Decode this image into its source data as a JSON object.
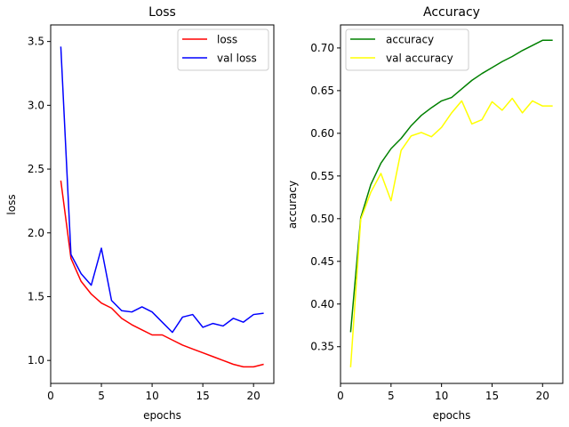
{
  "chart_data": [
    {
      "type": "line",
      "title": "Loss",
      "xlabel": "epochs",
      "ylabel": "loss",
      "xlim": [
        0,
        22
      ],
      "ylim": [
        0.82,
        3.63
      ],
      "xticks": [
        0,
        5,
        10,
        15,
        20
      ],
      "yticks": [
        1.0,
        1.5,
        2.0,
        2.5,
        3.0,
        3.5
      ],
      "ytick_labels": [
        "1.0",
        "1.5",
        "2.0",
        "2.5",
        "3.0",
        "3.5"
      ],
      "grid": false,
      "legend_position": "top-right",
      "x": [
        1,
        2,
        3,
        4,
        5,
        6,
        7,
        8,
        9,
        10,
        11,
        12,
        13,
        14,
        15,
        16,
        17,
        18,
        19,
        20,
        21
      ],
      "series": [
        {
          "name": "loss",
          "color": "#ff0000",
          "values": [
            2.41,
            1.8,
            1.62,
            1.52,
            1.45,
            1.41,
            1.33,
            1.28,
            1.24,
            1.2,
            1.2,
            1.16,
            1.12,
            1.09,
            1.06,
            1.03,
            1.0,
            0.97,
            0.95,
            0.95,
            0.97
          ]
        },
        {
          "name": "val loss",
          "color": "#0000ff",
          "values": [
            3.46,
            1.83,
            1.68,
            1.59,
            1.88,
            1.47,
            1.39,
            1.38,
            1.42,
            1.38,
            1.3,
            1.22,
            1.34,
            1.36,
            1.26,
            1.29,
            1.27,
            1.33,
            1.3,
            1.36,
            1.37
          ]
        }
      ]
    },
    {
      "type": "line",
      "title": "Accuracy",
      "xlabel": "epochs",
      "ylabel": "accuracy",
      "xlim": [
        0,
        22
      ],
      "ylim": [
        0.307,
        0.727
      ],
      "xticks": [
        0,
        5,
        10,
        15,
        20
      ],
      "yticks": [
        0.35,
        0.4,
        0.45,
        0.5,
        0.55,
        0.6,
        0.65,
        0.7
      ],
      "ytick_labels": [
        "0.35",
        "0.40",
        "0.45",
        "0.50",
        "0.55",
        "0.60",
        "0.65",
        "0.70"
      ],
      "grid": false,
      "legend_position": "top-left",
      "x": [
        1,
        2,
        3,
        4,
        5,
        6,
        7,
        8,
        9,
        10,
        11,
        12,
        13,
        14,
        15,
        16,
        17,
        18,
        19,
        20,
        21
      ],
      "series": [
        {
          "name": "accuracy",
          "color": "#008000",
          "values": [
            0.367,
            0.501,
            0.54,
            0.565,
            0.582,
            0.594,
            0.609,
            0.621,
            0.63,
            0.638,
            0.642,
            0.652,
            0.662,
            0.67,
            0.677,
            0.684,
            0.69,
            0.697,
            0.703,
            0.709,
            0.709
          ]
        },
        {
          "name": "val accuracy",
          "color": "#ffff00",
          "values": [
            0.326,
            0.499,
            0.531,
            0.553,
            0.521,
            0.58,
            0.597,
            0.601,
            0.596,
            0.607,
            0.624,
            0.638,
            0.611,
            0.616,
            0.637,
            0.627,
            0.641,
            0.624,
            0.638,
            0.632,
            0.632
          ]
        }
      ]
    }
  ]
}
